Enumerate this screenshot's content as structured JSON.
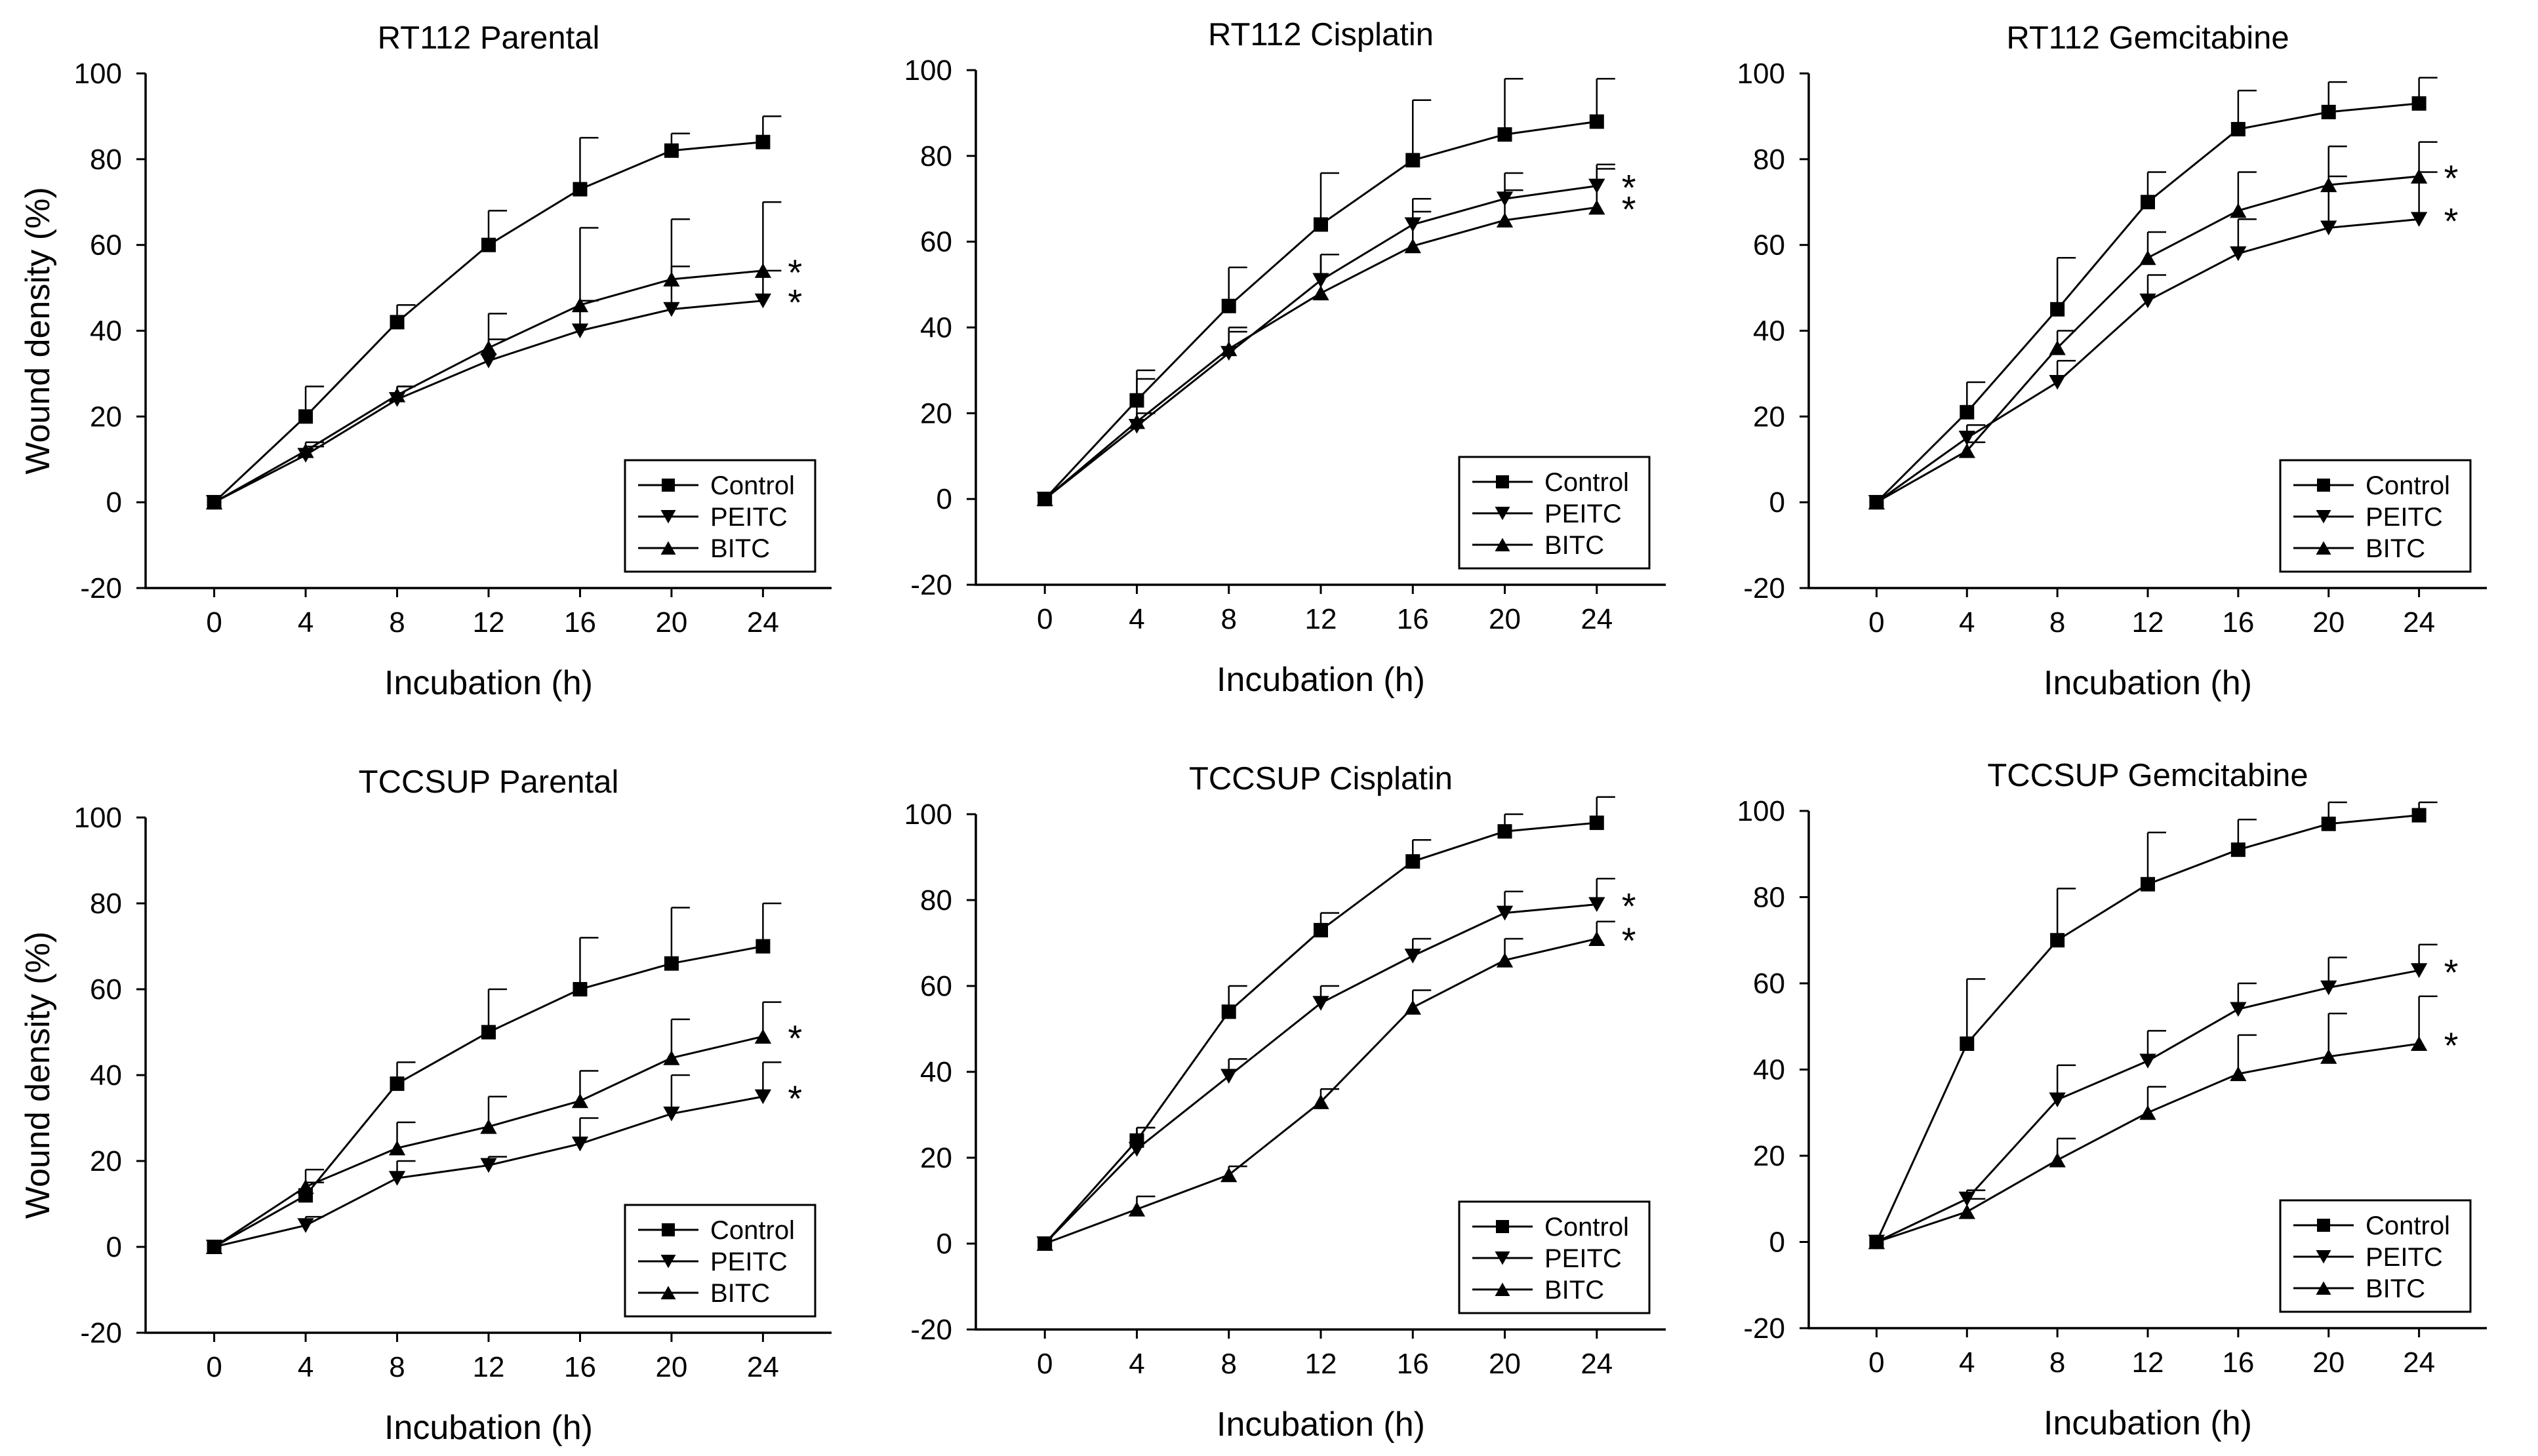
{
  "figure": {
    "shared": {
      "xlabel": "Incubation (h)",
      "ylabel": "Wound density (%)",
      "x": [
        0,
        4,
        8,
        12,
        16,
        20,
        24
      ],
      "xticks": [
        "0",
        "4",
        "8",
        "12",
        "16",
        "20",
        "24"
      ],
      "yticks": [
        "-20",
        "0",
        "20",
        "40",
        "60",
        "80",
        "100"
      ],
      "legend": [
        "Control",
        "PEITC",
        "BITC"
      ],
      "significance_marker": "*"
    }
  },
  "chart_data": [
    {
      "type": "line",
      "title": "RT112 Parental",
      "xlabel": "Incubation (h)",
      "ylabel": "Wound density (%)",
      "x": [
        0,
        4,
        8,
        12,
        16,
        20,
        24
      ],
      "xlim": [
        -3,
        27
      ],
      "ylim": [
        -20,
        100
      ],
      "legend_position": "bottom-right",
      "series": [
        {
          "name": "Control",
          "marker": "square",
          "values": [
            0,
            20,
            42,
            60,
            73,
            82,
            84
          ],
          "errors": [
            0,
            7,
            4,
            8,
            12,
            4,
            6
          ]
        },
        {
          "name": "PEITC",
          "marker": "triangle-down",
          "values": [
            0,
            11,
            24,
            33,
            40,
            45,
            47
          ],
          "errors": [
            0,
            2,
            3,
            5,
            7,
            10,
            7
          ]
        },
        {
          "name": "BITC",
          "marker": "triangle-up",
          "values": [
            0,
            12,
            25,
            36,
            46,
            52,
            54
          ],
          "errors": [
            0,
            2,
            2,
            8,
            18,
            14,
            16
          ]
        }
      ],
      "significant": [
        "BITC",
        "PEITC"
      ]
    },
    {
      "type": "line",
      "title": "RT112 Cisplatin",
      "xlabel": "Incubation (h)",
      "ylabel": "",
      "x": [
        0,
        4,
        8,
        12,
        16,
        20,
        24
      ],
      "xlim": [
        -3,
        27
      ],
      "ylim": [
        -20,
        100
      ],
      "legend_position": "bottom-right",
      "series": [
        {
          "name": "Control",
          "marker": "square",
          "values": [
            0,
            23,
            45,
            64,
            79,
            85,
            88
          ],
          "errors": [
            0,
            5,
            9,
            12,
            14,
            13,
            10
          ]
        },
        {
          "name": "PEITC",
          "marker": "triangle-down",
          "values": [
            0,
            17,
            34,
            51,
            64,
            70,
            73
          ],
          "errors": [
            0,
            3,
            5,
            6,
            3,
            2,
            5
          ]
        },
        {
          "name": "BITC",
          "marker": "triangle-up",
          "values": [
            0,
            18,
            35,
            48,
            59,
            65,
            68
          ],
          "errors": [
            0,
            12,
            5,
            9,
            11,
            11,
            9
          ]
        }
      ],
      "significant": [
        "PEITC",
        "BITC"
      ]
    },
    {
      "type": "line",
      "title": "RT112 Gemcitabine",
      "xlabel": "Incubation (h)",
      "ylabel": "",
      "x": [
        0,
        4,
        8,
        12,
        16,
        20,
        24
      ],
      "xlim": [
        -3,
        27
      ],
      "ylim": [
        -20,
        100
      ],
      "legend_position": "bottom-right",
      "series": [
        {
          "name": "Control",
          "marker": "square",
          "values": [
            0,
            21,
            45,
            70,
            87,
            91,
            93
          ],
          "errors": [
            0,
            7,
            12,
            7,
            9,
            7,
            6
          ]
        },
        {
          "name": "PEITC",
          "marker": "triangle-down",
          "values": [
            0,
            15,
            28,
            47,
            58,
            64,
            66
          ],
          "errors": [
            0,
            3,
            5,
            6,
            8,
            12,
            11
          ]
        },
        {
          "name": "BITC",
          "marker": "triangle-up",
          "values": [
            0,
            12,
            36,
            57,
            68,
            74,
            76
          ],
          "errors": [
            0,
            2,
            4,
            6,
            9,
            9,
            8
          ]
        }
      ],
      "significant": [
        "BITC",
        "PEITC"
      ]
    },
    {
      "type": "line",
      "title": "TCCSUP Parental",
      "xlabel": "Incubation (h)",
      "ylabel": "Wound density (%)",
      "x": [
        0,
        4,
        8,
        12,
        16,
        20,
        24
      ],
      "xlim": [
        -3,
        27
      ],
      "ylim": [
        -20,
        100
      ],
      "legend_position": "bottom-right",
      "series": [
        {
          "name": "Control",
          "marker": "square",
          "values": [
            0,
            12,
            38,
            50,
            60,
            66,
            70
          ],
          "errors": [
            0,
            3,
            5,
            10,
            12,
            13,
            10
          ]
        },
        {
          "name": "PEITC",
          "marker": "triangle-down",
          "values": [
            0,
            5,
            16,
            19,
            24,
            31,
            35
          ],
          "errors": [
            0,
            2,
            4,
            2,
            6,
            9,
            8
          ]
        },
        {
          "name": "BITC",
          "marker": "triangle-up",
          "values": [
            0,
            14,
            23,
            28,
            34,
            44,
            49
          ],
          "errors": [
            0,
            4,
            6,
            7,
            7,
            9,
            8
          ]
        }
      ],
      "significant": [
        "BITC",
        "PEITC"
      ]
    },
    {
      "type": "line",
      "title": "TCCSUP Cisplatin",
      "xlabel": "Incubation (h)",
      "ylabel": "",
      "x": [
        0,
        4,
        8,
        12,
        16,
        20,
        24
      ],
      "xlim": [
        -3,
        27
      ],
      "ylim": [
        -20,
        100
      ],
      "legend_position": "bottom-right",
      "series": [
        {
          "name": "Control",
          "marker": "square",
          "values": [
            0,
            24,
            54,
            73,
            89,
            96,
            98
          ],
          "errors": [
            0,
            3,
            6,
            4,
            5,
            4,
            6
          ]
        },
        {
          "name": "PEITC",
          "marker": "triangle-down",
          "values": [
            0,
            22,
            39,
            56,
            67,
            77,
            79
          ],
          "errors": [
            0,
            5,
            4,
            4,
            4,
            5,
            6
          ]
        },
        {
          "name": "BITC",
          "marker": "triangle-up",
          "values": [
            0,
            8,
            16,
            33,
            55,
            66,
            71
          ],
          "errors": [
            0,
            3,
            2,
            3,
            4,
            5,
            4
          ]
        }
      ],
      "significant": [
        "PEITC",
        "BITC"
      ]
    },
    {
      "type": "line",
      "title": "TCCSUP Gemcitabine",
      "xlabel": "Incubation (h)",
      "ylabel": "",
      "x": [
        0,
        4,
        8,
        12,
        16,
        20,
        24
      ],
      "xlim": [
        -3,
        27
      ],
      "ylim": [
        -20,
        100
      ],
      "legend_position": "bottom-right",
      "series": [
        {
          "name": "Control",
          "marker": "square",
          "values": [
            0,
            46,
            70,
            83,
            91,
            97,
            99
          ],
          "errors": [
            0,
            15,
            12,
            12,
            7,
            5,
            3
          ]
        },
        {
          "name": "PEITC",
          "marker": "triangle-down",
          "values": [
            0,
            10,
            33,
            42,
            54,
            59,
            63
          ],
          "errors": [
            0,
            2,
            8,
            7,
            6,
            7,
            6
          ]
        },
        {
          "name": "BITC",
          "marker": "triangle-up",
          "values": [
            0,
            7,
            19,
            30,
            39,
            43,
            46
          ],
          "errors": [
            0,
            3,
            5,
            6,
            9,
            10,
            11
          ]
        }
      ],
      "significant": [
        "PEITC",
        "BITC"
      ]
    }
  ]
}
